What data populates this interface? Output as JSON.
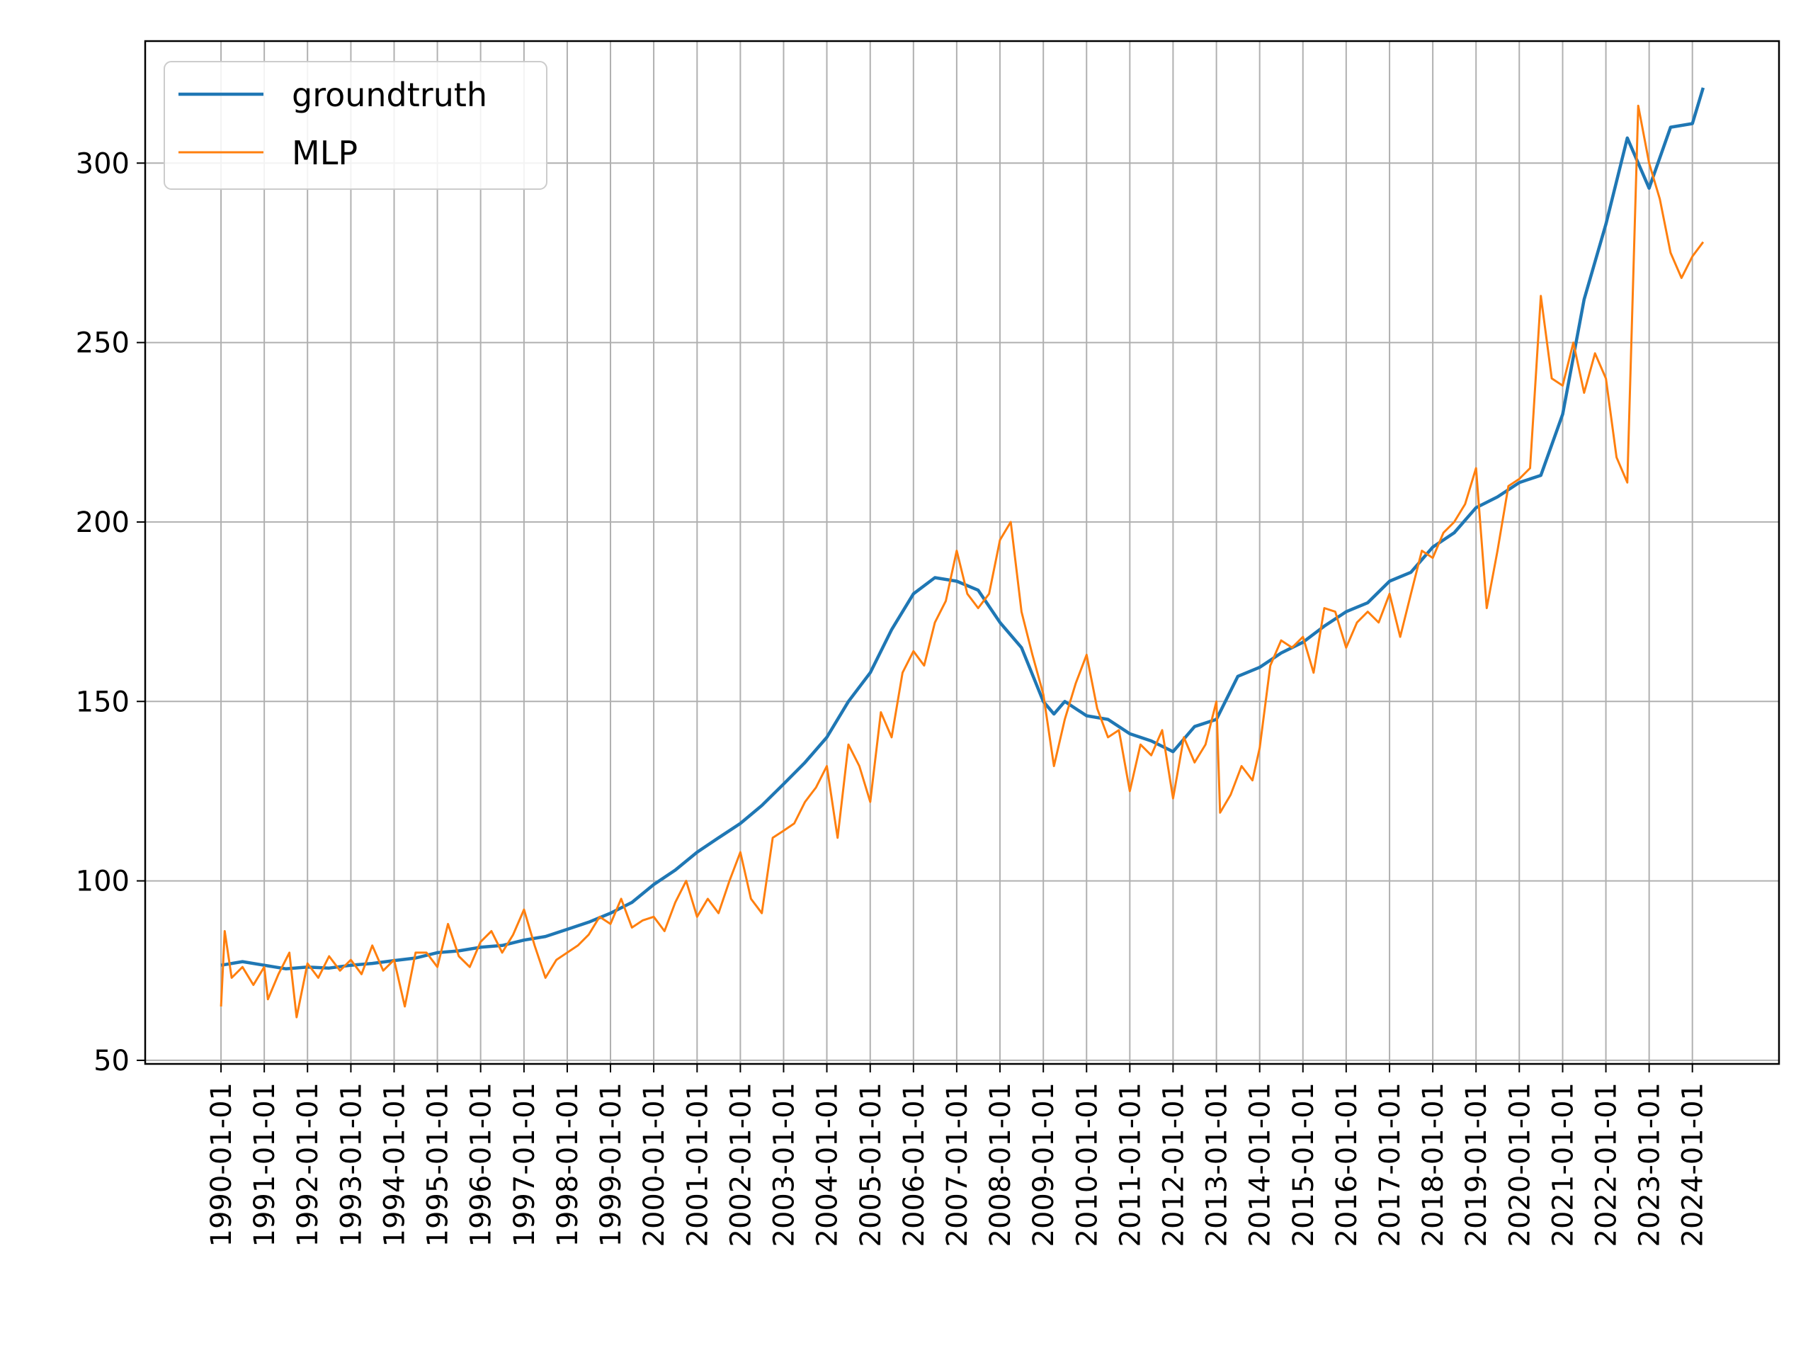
{
  "chart_data": {
    "type": "line",
    "title": "",
    "xlabel": "",
    "ylabel": "",
    "x_ticks": [
      "1990-01-01",
      "1991-01-01",
      "1992-01-01",
      "1993-01-01",
      "1994-01-01",
      "1995-01-01",
      "1996-01-01",
      "1997-01-01",
      "1998-01-01",
      "1999-01-01",
      "2000-01-01",
      "2001-01-01",
      "2002-01-01",
      "2003-01-01",
      "2004-01-01",
      "2005-01-01",
      "2006-01-01",
      "2007-01-01",
      "2008-01-01",
      "2009-01-01",
      "2010-01-01",
      "2011-01-01",
      "2012-01-01",
      "2013-01-01",
      "2014-01-01",
      "2015-01-01",
      "2016-01-01",
      "2017-01-01",
      "2018-01-01",
      "2019-01-01",
      "2020-01-01",
      "2021-01-01",
      "2022-01-01",
      "2023-01-01",
      "2024-01-01"
    ],
    "xlim": [
      "1988-04-01",
      "2026-01-01"
    ],
    "y_ticks": [
      50,
      100,
      150,
      200,
      250,
      300
    ],
    "ylim": [
      49,
      334
    ],
    "grid": true,
    "legend": "top-left",
    "series": [
      {
        "name": "groundtruth",
        "color": "#1f77b4",
        "points": [
          [
            "1990-01-01",
            76.5
          ],
          [
            "1990-07-01",
            77.5
          ],
          [
            "1991-01-01",
            76.5
          ],
          [
            "1991-07-01",
            75.5
          ],
          [
            "1992-01-01",
            76.0
          ],
          [
            "1992-07-01",
            75.7
          ],
          [
            "1993-01-01",
            76.5
          ],
          [
            "1993-07-01",
            77.0
          ],
          [
            "1994-01-01",
            77.8
          ],
          [
            "1994-07-01",
            78.5
          ],
          [
            "1995-01-01",
            80.0
          ],
          [
            "1995-07-01",
            80.5
          ],
          [
            "1996-01-01",
            81.5
          ],
          [
            "1996-07-01",
            82.0
          ],
          [
            "1997-01-01",
            83.5
          ],
          [
            "1997-07-01",
            84.5
          ],
          [
            "1998-01-01",
            86.5
          ],
          [
            "1998-07-01",
            88.5
          ],
          [
            "1999-01-01",
            91.0
          ],
          [
            "1999-07-01",
            94.0
          ],
          [
            "2000-01-01",
            99.0
          ],
          [
            "2000-07-01",
            103.0
          ],
          [
            "2001-01-01",
            108.0
          ],
          [
            "2001-07-01",
            112.0
          ],
          [
            "2002-01-01",
            116.0
          ],
          [
            "2002-07-01",
            121.0
          ],
          [
            "2003-01-01",
            127.0
          ],
          [
            "2003-07-01",
            133.0
          ],
          [
            "2004-01-01",
            140.0
          ],
          [
            "2004-07-01",
            150.0
          ],
          [
            "2005-01-01",
            158.0
          ],
          [
            "2005-07-01",
            170.0
          ],
          [
            "2006-01-01",
            180.0
          ],
          [
            "2006-07-01",
            184.5
          ],
          [
            "2007-01-01",
            183.5
          ],
          [
            "2007-07-01",
            181.0
          ],
          [
            "2008-01-01",
            172.0
          ],
          [
            "2008-07-01",
            165.0
          ],
          [
            "2009-01-01",
            150.0
          ],
          [
            "2009-04-01",
            146.5
          ],
          [
            "2009-07-01",
            150.0
          ],
          [
            "2010-01-01",
            146.0
          ],
          [
            "2010-07-01",
            145.0
          ],
          [
            "2011-01-01",
            141.0
          ],
          [
            "2011-07-01",
            139.0
          ],
          [
            "2012-01-01",
            136.0
          ],
          [
            "2012-07-01",
            143.0
          ],
          [
            "2013-01-01",
            145.0
          ],
          [
            "2013-07-01",
            157.0
          ],
          [
            "2014-01-01",
            159.5
          ],
          [
            "2014-07-01",
            163.5
          ],
          [
            "2015-01-01",
            166.5
          ],
          [
            "2015-07-01",
            171.0
          ],
          [
            "2016-01-01",
            175.0
          ],
          [
            "2016-07-01",
            177.5
          ],
          [
            "2017-01-01",
            183.5
          ],
          [
            "2017-07-01",
            186.0
          ],
          [
            "2018-01-01",
            193.0
          ],
          [
            "2018-07-01",
            197.0
          ],
          [
            "2019-01-01",
            204.0
          ],
          [
            "2019-07-01",
            207.0
          ],
          [
            "2020-01-01",
            211.0
          ],
          [
            "2020-07-01",
            213.0
          ],
          [
            "2021-01-01",
            230.0
          ],
          [
            "2021-07-01",
            262.0
          ],
          [
            "2022-01-01",
            283.0
          ],
          [
            "2022-07-01",
            307.0
          ],
          [
            "2023-01-01",
            293.0
          ],
          [
            "2023-07-01",
            310.0
          ],
          [
            "2024-01-01",
            311.0
          ],
          [
            "2024-04-01",
            321.0
          ]
        ]
      },
      {
        "name": "MLP",
        "color": "#ff7f0e",
        "points": [
          [
            "1990-01-01",
            65.0
          ],
          [
            "1990-02-01",
            86.0
          ],
          [
            "1990-04-01",
            73.0
          ],
          [
            "1990-07-01",
            76.0
          ],
          [
            "1990-10-01",
            71.0
          ],
          [
            "1991-01-01",
            76.0
          ],
          [
            "1991-02-01",
            67.0
          ],
          [
            "1991-05-01",
            74.0
          ],
          [
            "1991-08-01",
            80.0
          ],
          [
            "1991-10-01",
            62.0
          ],
          [
            "1992-01-01",
            77.0
          ],
          [
            "1992-04-01",
            73.0
          ],
          [
            "1992-07-01",
            79.0
          ],
          [
            "1992-10-01",
            75.0
          ],
          [
            "1993-01-01",
            78.0
          ],
          [
            "1993-04-01",
            74.0
          ],
          [
            "1993-07-01",
            82.0
          ],
          [
            "1993-10-01",
            75.0
          ],
          [
            "1994-01-01",
            78.0
          ],
          [
            "1994-04-01",
            65.0
          ],
          [
            "1994-07-01",
            80.0
          ],
          [
            "1994-10-01",
            80.0
          ],
          [
            "1995-01-01",
            76.0
          ],
          [
            "1995-04-01",
            88.0
          ],
          [
            "1995-07-01",
            79.0
          ],
          [
            "1995-10-01",
            76.0
          ],
          [
            "1996-01-01",
            83.0
          ],
          [
            "1996-04-01",
            86.0
          ],
          [
            "1996-07-01",
            80.0
          ],
          [
            "1996-10-01",
            85.0
          ],
          [
            "1997-01-01",
            92.0
          ],
          [
            "1997-04-01",
            82.0
          ],
          [
            "1997-07-01",
            73.0
          ],
          [
            "1997-10-01",
            78.0
          ],
          [
            "1998-01-01",
            80.0
          ],
          [
            "1998-04-01",
            82.0
          ],
          [
            "1998-07-01",
            85.0
          ],
          [
            "1998-10-01",
            90.0
          ],
          [
            "1999-01-01",
            88.0
          ],
          [
            "1999-04-01",
            95.0
          ],
          [
            "1999-07-01",
            87.0
          ],
          [
            "1999-10-01",
            89.0
          ],
          [
            "2000-01-01",
            90.0
          ],
          [
            "2000-04-01",
            86.0
          ],
          [
            "2000-07-01",
            94.0
          ],
          [
            "2000-10-01",
            100.0
          ],
          [
            "2001-01-01",
            90.0
          ],
          [
            "2001-04-01",
            95.0
          ],
          [
            "2001-07-01",
            91.0
          ],
          [
            "2001-10-01",
            100.0
          ],
          [
            "2002-01-01",
            108.0
          ],
          [
            "2002-04-01",
            95.0
          ],
          [
            "2002-07-01",
            91.0
          ],
          [
            "2002-10-01",
            112.0
          ],
          [
            "2003-01-01",
            114.0
          ],
          [
            "2003-04-01",
            116.0
          ],
          [
            "2003-07-01",
            122.0
          ],
          [
            "2003-10-01",
            126.0
          ],
          [
            "2004-01-01",
            132.0
          ],
          [
            "2004-04-01",
            112.0
          ],
          [
            "2004-07-01",
            138.0
          ],
          [
            "2004-10-01",
            132.0
          ],
          [
            "2005-01-01",
            122.0
          ],
          [
            "2005-04-01",
            147.0
          ],
          [
            "2005-07-01",
            140.0
          ],
          [
            "2005-10-01",
            158.0
          ],
          [
            "2006-01-01",
            164.0
          ],
          [
            "2006-04-01",
            160.0
          ],
          [
            "2006-07-01",
            172.0
          ],
          [
            "2006-10-01",
            178.0
          ],
          [
            "2007-01-01",
            192.0
          ],
          [
            "2007-04-01",
            180.0
          ],
          [
            "2007-07-01",
            176.0
          ],
          [
            "2007-10-01",
            180.0
          ],
          [
            "2008-01-01",
            195.0
          ],
          [
            "2008-04-01",
            200.0
          ],
          [
            "2008-07-01",
            175.0
          ],
          [
            "2008-10-01",
            163.0
          ],
          [
            "2009-01-01",
            152.0
          ],
          [
            "2009-04-01",
            132.0
          ],
          [
            "2009-07-01",
            145.0
          ],
          [
            "2009-10-01",
            155.0
          ],
          [
            "2010-01-01",
            163.0
          ],
          [
            "2010-04-01",
            148.0
          ],
          [
            "2010-07-01",
            140.0
          ],
          [
            "2010-10-01",
            142.0
          ],
          [
            "2011-01-01",
            125.0
          ],
          [
            "2011-04-01",
            138.0
          ],
          [
            "2011-07-01",
            135.0
          ],
          [
            "2011-10-01",
            142.0
          ],
          [
            "2012-01-01",
            123.0
          ],
          [
            "2012-04-01",
            140.0
          ],
          [
            "2012-07-01",
            133.0
          ],
          [
            "2012-10-01",
            138.0
          ],
          [
            "2013-01-01",
            150.0
          ],
          [
            "2013-02-01",
            119.0
          ],
          [
            "2013-05-01",
            124.0
          ],
          [
            "2013-08-01",
            132.0
          ],
          [
            "2013-11-01",
            128.0
          ],
          [
            "2014-01-01",
            137.0
          ],
          [
            "2014-04-01",
            160.0
          ],
          [
            "2014-07-01",
            167.0
          ],
          [
            "2014-10-01",
            165.0
          ],
          [
            "2015-01-01",
            168.0
          ],
          [
            "2015-04-01",
            158.0
          ],
          [
            "2015-07-01",
            176.0
          ],
          [
            "2015-10-01",
            175.0
          ],
          [
            "2016-01-01",
            165.0
          ],
          [
            "2016-04-01",
            172.0
          ],
          [
            "2016-07-01",
            175.0
          ],
          [
            "2016-10-01",
            172.0
          ],
          [
            "2017-01-01",
            180.0
          ],
          [
            "2017-04-01",
            168.0
          ],
          [
            "2017-07-01",
            180.0
          ],
          [
            "2017-10-01",
            192.0
          ],
          [
            "2018-01-01",
            190.0
          ],
          [
            "2018-04-01",
            197.0
          ],
          [
            "2018-07-01",
            200.0
          ],
          [
            "2018-10-01",
            205.0
          ],
          [
            "2019-01-01",
            215.0
          ],
          [
            "2019-04-01",
            176.0
          ],
          [
            "2019-07-01",
            192.0
          ],
          [
            "2019-10-01",
            210.0
          ],
          [
            "2020-01-01",
            212.0
          ],
          [
            "2020-04-01",
            215.0
          ],
          [
            "2020-07-01",
            263.0
          ],
          [
            "2020-10-01",
            240.0
          ],
          [
            "2021-01-01",
            238.0
          ],
          [
            "2021-04-01",
            250.0
          ],
          [
            "2021-07-01",
            236.0
          ],
          [
            "2021-10-01",
            247.0
          ],
          [
            "2022-01-01",
            240.0
          ],
          [
            "2022-04-01",
            218.0
          ],
          [
            "2022-07-01",
            211.0
          ],
          [
            "2022-10-01",
            316.0
          ],
          [
            "2023-01-01",
            300.0
          ],
          [
            "2023-04-01",
            290.0
          ],
          [
            "2023-07-01",
            275.0
          ],
          [
            "2023-10-01",
            268.0
          ],
          [
            "2024-01-01",
            274.0
          ],
          [
            "2024-04-01",
            278.0
          ]
        ]
      }
    ]
  }
}
